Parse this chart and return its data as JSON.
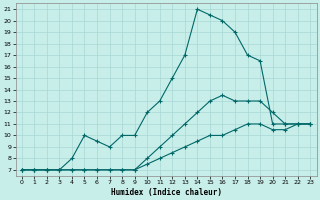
{
  "xlabel": "Humidex (Indice chaleur)",
  "bg_color": "#c8eeea",
  "grid_color": "#a8d8d4",
  "line_color": "#006868",
  "xlim": [
    -0.5,
    23.5
  ],
  "ylim": [
    6.5,
    21.5
  ],
  "xticks": [
    0,
    1,
    2,
    3,
    4,
    5,
    6,
    7,
    8,
    9,
    10,
    11,
    12,
    13,
    14,
    15,
    16,
    17,
    18,
    19,
    20,
    21,
    22,
    23
  ],
  "yticks": [
    7,
    8,
    9,
    10,
    11,
    12,
    13,
    14,
    15,
    16,
    17,
    18,
    19,
    20,
    21
  ],
  "line1": {
    "x": [
      0,
      1,
      2,
      3,
      4,
      5,
      6,
      7,
      8,
      9,
      10,
      11,
      12,
      13,
      14,
      15,
      16,
      17,
      18,
      19,
      20,
      21,
      22,
      23
    ],
    "y": [
      7,
      7,
      7,
      7,
      7,
      7,
      7,
      7,
      7,
      7,
      7.5,
      8,
      8.5,
      9,
      9.5,
      10,
      10,
      10.5,
      11,
      11,
      10.5,
      10.5,
      11,
      11
    ]
  },
  "line2": {
    "x": [
      0,
      1,
      2,
      3,
      4,
      5,
      6,
      7,
      8,
      9,
      10,
      11,
      12,
      13,
      14,
      15,
      16,
      17,
      18,
      19,
      20,
      21,
      22,
      23
    ],
    "y": [
      7,
      7,
      7,
      7,
      7,
      7,
      7,
      7,
      7,
      7,
      8,
      9,
      10,
      11,
      12,
      13,
      13.5,
      13,
      13,
      13,
      12,
      11,
      11,
      11
    ]
  },
  "line3": {
    "x": [
      0,
      1,
      2,
      3,
      4,
      5,
      6,
      7,
      8,
      9,
      10,
      11,
      12,
      13,
      14,
      15,
      16,
      17,
      18,
      19,
      20,
      21,
      22,
      23
    ],
    "y": [
      7,
      7,
      7,
      7,
      8,
      10,
      9.5,
      9,
      10,
      10,
      12,
      13,
      15,
      17,
      21,
      20.5,
      20,
      19,
      17,
      16.5,
      11,
      11,
      11,
      11
    ]
  }
}
